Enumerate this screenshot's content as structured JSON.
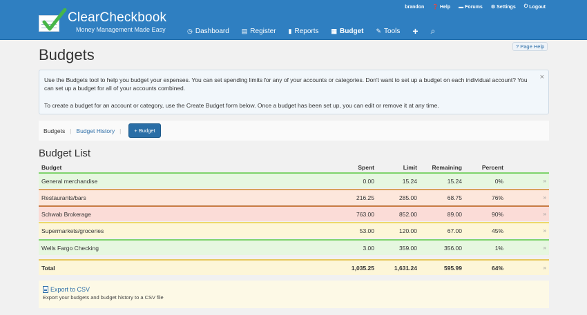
{
  "app": {
    "brand": "ClearCheckbook",
    "tagline": "Money Management Made Easy"
  },
  "usernav": [
    {
      "icon": "user-icon",
      "label": "brandon"
    },
    {
      "icon": "help-icon",
      "label": "Help"
    },
    {
      "icon": "forums-icon",
      "label": "Forums"
    },
    {
      "icon": "gear-icon",
      "label": "Settings"
    },
    {
      "icon": "logout-icon",
      "label": "Logout"
    }
  ],
  "nav": [
    {
      "icon": "dashboard-icon",
      "glyph": "◷",
      "label": "Dashboard",
      "active": false
    },
    {
      "icon": "register-icon",
      "glyph": "▤",
      "label": "Register",
      "active": false
    },
    {
      "icon": "reports-icon",
      "glyph": "▮",
      "label": "Reports",
      "active": false
    },
    {
      "icon": "budget-icon",
      "glyph": "▦",
      "label": "Budget",
      "active": true
    },
    {
      "icon": "tools-icon",
      "glyph": "✎",
      "label": "Tools",
      "active": false
    }
  ],
  "nav_plus": "+",
  "nav_search_glyph": "⌕",
  "page_help": "? Page Help",
  "page_title": "Budgets",
  "info": {
    "p1": "Use the Budgets tool to help you budget your expenses. You can set spending limits for any of your accounts or categories. Don't want to set up a budget on each individual account? You can set up a budget for all of your accounts combined.",
    "p2": "To create a budget for an account or category, use the Create Budget form below. Once a budget has been set up, you can edit or remove it at any time.",
    "close": "×"
  },
  "subnav": {
    "current": "Budgets",
    "history": "Budget History",
    "sep": "|",
    "add_button": "+ Budget"
  },
  "list_title": "Budget List",
  "table": {
    "headers": {
      "budget": "Budget",
      "spent": "Spent",
      "limit": "Limit",
      "remaining": "Remaining",
      "percent": "Percent"
    },
    "rows": [
      {
        "budget": "General merchandise",
        "spent": "0.00",
        "limit": "15.24",
        "remaining": "15.24",
        "percent": "0%",
        "status": "green",
        "bg": "#e6f7e0",
        "border": "#7ed36b"
      },
      {
        "budget": "Restaurants/bars",
        "spent": "216.25",
        "limit": "285.00",
        "remaining": "68.75",
        "percent": "76%",
        "status": "orange",
        "bg": "#fde7dc",
        "border": "#d9a15a"
      },
      {
        "budget": "Schwab Brokerage",
        "spent": "763.00",
        "limit": "852.00",
        "remaining": "89.00",
        "percent": "90%",
        "status": "red",
        "bg": "#fbdcd7",
        "border": "#c9793f"
      },
      {
        "budget": "Supermarkets/groceries",
        "spent": "53.00",
        "limit": "120.00",
        "remaining": "67.00",
        "percent": "45%",
        "status": "yellow",
        "bg": "#fdf6d8",
        "border": "#ecd96a"
      },
      {
        "budget": "Wells Fargo Checking",
        "spent": "3.00",
        "limit": "359.00",
        "remaining": "356.00",
        "percent": "1%",
        "status": "green",
        "bg": "#e6f7e0",
        "border": "#7ed36b"
      }
    ],
    "total": {
      "budget": "Total",
      "spent": "1,035.25",
      "limit": "1,631.24",
      "remaining": "595.99",
      "percent": "64%",
      "bg": "#fdf6d8",
      "border": "#e6c75c"
    },
    "expand_glyph": "»"
  },
  "export": {
    "link": "Export to CSV",
    "description": "Export your budgets and budget history to a CSV file"
  },
  "colors": {
    "header_blue": "#2f7fc1",
    "link_blue": "#2f6fa8",
    "button_blue": "#2a6ea6"
  }
}
